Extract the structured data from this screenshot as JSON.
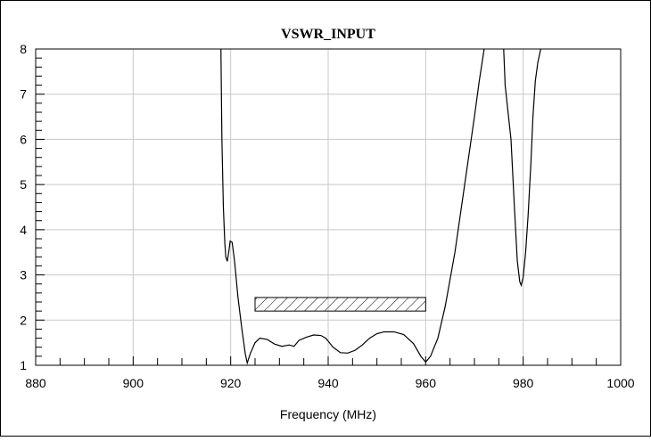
{
  "chart_data": {
    "type": "line",
    "title": "VSWR_INPUT",
    "xlabel": "Frequency (MHz)",
    "ylabel": "",
    "xlim": [
      880,
      1000
    ],
    "ylim": [
      1,
      8
    ],
    "x_ticks": [
      "880",
      "900",
      "920",
      "940",
      "960",
      "980",
      "1000"
    ],
    "y_ticks": [
      "1",
      "2",
      "3",
      "4",
      "5",
      "6",
      "7",
      "8"
    ],
    "grid": true,
    "series": [
      {
        "points": [
          [
            918.0,
            8.0
          ],
          [
            918.2,
            6.0
          ],
          [
            918.5,
            4.5
          ],
          [
            918.8,
            3.7
          ],
          [
            919.0,
            3.4
          ],
          [
            919.3,
            3.3
          ],
          [
            919.6,
            3.5
          ],
          [
            919.9,
            3.75
          ],
          [
            920.3,
            3.72
          ],
          [
            920.8,
            3.3
          ],
          [
            921.5,
            2.5
          ],
          [
            922.3,
            1.8
          ],
          [
            923.0,
            1.25
          ],
          [
            923.4,
            1.05
          ],
          [
            924.0,
            1.25
          ],
          [
            925.0,
            1.5
          ],
          [
            926.0,
            1.6
          ],
          [
            927.5,
            1.57
          ],
          [
            929.0,
            1.47
          ],
          [
            930.5,
            1.42
          ],
          [
            932.0,
            1.45
          ],
          [
            933.0,
            1.42
          ],
          [
            934.0,
            1.55
          ],
          [
            935.5,
            1.62
          ],
          [
            937.0,
            1.67
          ],
          [
            938.5,
            1.66
          ],
          [
            939.5,
            1.6
          ],
          [
            941.0,
            1.4
          ],
          [
            942.5,
            1.28
          ],
          [
            944.0,
            1.27
          ],
          [
            945.5,
            1.33
          ],
          [
            947.0,
            1.45
          ],
          [
            948.5,
            1.6
          ],
          [
            950.0,
            1.7
          ],
          [
            951.5,
            1.74
          ],
          [
            953.5,
            1.74
          ],
          [
            955.5,
            1.68
          ],
          [
            957.5,
            1.48
          ],
          [
            959.0,
            1.2
          ],
          [
            960.0,
            1.07
          ],
          [
            961.0,
            1.2
          ],
          [
            962.5,
            1.6
          ],
          [
            964.0,
            2.3
          ],
          [
            966.0,
            3.5
          ],
          [
            968.0,
            5.0
          ],
          [
            970.0,
            6.5
          ],
          [
            971.0,
            7.3
          ],
          [
            972.0,
            8.0
          ]
        ]
      },
      {
        "points": [
          [
            976.0,
            8.0
          ],
          [
            976.3,
            7.2
          ],
          [
            977.0,
            6.5
          ],
          [
            977.5,
            6.0
          ],
          [
            978.2,
            4.5
          ],
          [
            978.8,
            3.3
          ],
          [
            979.3,
            2.85
          ],
          [
            979.6,
            2.77
          ],
          [
            980.0,
            2.95
          ],
          [
            980.5,
            3.5
          ],
          [
            981.0,
            4.3
          ],
          [
            981.6,
            5.5
          ],
          [
            982.0,
            6.5
          ],
          [
            982.5,
            7.3
          ],
          [
            983.0,
            7.7
          ],
          [
            983.6,
            8.0
          ]
        ]
      }
    ],
    "annotations": [
      {
        "type": "hatched-band",
        "x": [
          925,
          960
        ],
        "y": [
          2.2,
          2.5
        ]
      }
    ]
  }
}
